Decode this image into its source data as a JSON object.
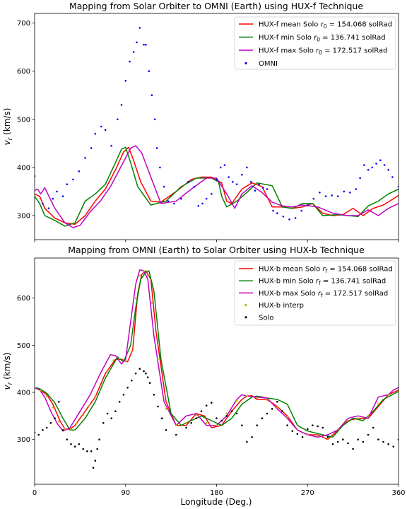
{
  "chart_data": [
    {
      "type": "line",
      "title": "Mapping from Solar Orbiter to OMNI (Earth) using HUX-f Technique",
      "xlabel": "",
      "ylabel": "v_r (km/s)",
      "ylabel_main": "v",
      "ylabel_sub": "r",
      "ylabel_rest": " (km/s)",
      "xlim": [
        0,
        360
      ],
      "ylim": [
        250,
        720
      ],
      "yticks": [
        "300",
        "400",
        "500",
        "600",
        "700"
      ],
      "legend_position": "upper-right",
      "series": [
        {
          "name": "HUX-f mean Solo r_0 = 154.068 solRad",
          "legend": {
            "pre": "HUX-f mean Solo ",
            "var": "r",
            "sub": "0",
            "post": " = 154.068 solRad"
          },
          "color": "#ff0000",
          "kind": "line",
          "x": [
            0,
            5,
            10,
            20,
            30,
            40,
            50,
            60,
            70,
            80,
            88,
            93,
            97,
            105,
            115,
            125,
            140,
            155,
            165,
            175,
            185,
            190,
            195,
            205,
            215,
            225,
            235,
            245,
            255,
            265,
            275,
            285,
            295,
            305,
            315,
            325,
            335,
            345,
            355,
            360
          ],
          "y": [
            345,
            340,
            315,
            295,
            285,
            282,
            300,
            330,
            355,
            395,
            432,
            442,
            420,
            370,
            330,
            328,
            350,
            375,
            380,
            380,
            368,
            330,
            325,
            355,
            368,
            360,
            318,
            318,
            315,
            318,
            325,
            305,
            300,
            302,
            315,
            300,
            315,
            322,
            335,
            342
          ]
        },
        {
          "name": "HUX-f min Solo r_0 = 136.741 solRad",
          "legend": {
            "pre": "HUX-f min Solo ",
            "var": "r",
            "sub": "0",
            "post": " = 136.741 solRad"
          },
          "color": "#008000",
          "kind": "line",
          "x": [
            0,
            5,
            10,
            20,
            30,
            40,
            50,
            60,
            70,
            80,
            86,
            90,
            95,
            102,
            115,
            130,
            145,
            160,
            175,
            182,
            185,
            190,
            200,
            210,
            220,
            235,
            245,
            255,
            265,
            275,
            285,
            300,
            310,
            320,
            330,
            340,
            350,
            360
          ],
          "y": [
            340,
            325,
            300,
            290,
            278,
            285,
            330,
            345,
            365,
            410,
            438,
            442,
            410,
            360,
            322,
            330,
            360,
            378,
            378,
            370,
            340,
            318,
            330,
            348,
            368,
            362,
            318,
            315,
            325,
            325,
            300,
            302,
            300,
            298,
            320,
            330,
            345,
            355
          ]
        },
        {
          "name": "HUX-f max Solo r_0 = 172.517 solRad",
          "legend": {
            "pre": "HUX-f max Solo ",
            "var": "r",
            "sub": "0",
            "post": " = 172.517 solRad"
          },
          "color": "#c000c0",
          "kind": "line",
          "x": [
            0,
            3,
            6,
            10,
            20,
            30,
            38,
            45,
            55,
            65,
            75,
            85,
            95,
            100,
            106,
            115,
            125,
            140,
            155,
            170,
            180,
            190,
            198,
            205,
            215,
            225,
            235,
            245,
            255,
            265,
            280,
            295,
            310,
            320,
            330,
            340,
            350,
            360
          ],
          "y": [
            352,
            355,
            345,
            358,
            315,
            285,
            275,
            280,
            308,
            330,
            360,
            400,
            440,
            445,
            430,
            380,
            325,
            330,
            355,
            378,
            378,
            345,
            315,
            345,
            362,
            348,
            328,
            320,
            318,
            322,
            318,
            305,
            300,
            300,
            312,
            300,
            315,
            325
          ]
        },
        {
          "name": "OMNI",
          "legend": {
            "pre": "OMNI",
            "var": "",
            "sub": "",
            "post": ""
          },
          "color": "#0000ff",
          "kind": "scatter",
          "x": [
            0,
            8,
            14,
            18,
            22,
            28,
            32,
            38,
            44,
            50,
            56,
            60,
            66,
            70,
            76,
            82,
            86,
            90,
            94,
            98,
            101,
            104,
            108,
            110,
            113,
            116,
            119,
            121,
            124,
            128,
            132,
            138,
            145,
            152,
            158,
            162,
            166,
            170,
            175,
            180,
            184,
            188,
            192,
            196,
            200,
            205,
            210,
            214,
            218,
            222,
            226,
            230,
            236,
            240,
            246,
            252,
            258,
            264,
            270,
            276,
            282,
            288,
            294,
            300,
            306,
            312,
            318,
            322,
            326,
            330,
            334,
            338,
            342,
            346,
            350,
            354,
            360
          ],
          "y": [
            382,
            325,
            315,
            335,
            350,
            340,
            365,
            375,
            392,
            420,
            440,
            470,
            485,
            478,
            445,
            500,
            530,
            580,
            620,
            640,
            660,
            690,
            655,
            655,
            600,
            550,
            500,
            440,
            400,
            360,
            330,
            325,
            335,
            370,
            360,
            320,
            325,
            335,
            345,
            375,
            400,
            405,
            380,
            370,
            365,
            385,
            400,
            370,
            352,
            365,
            358,
            355,
            310,
            305,
            298,
            292,
            295,
            310,
            322,
            335,
            348,
            340,
            342,
            340,
            350,
            348,
            355,
            378,
            405,
            395,
            400,
            408,
            415,
            405,
            395,
            380,
            360
          ]
        }
      ]
    },
    {
      "type": "line",
      "title": "Mapping from OMNI (Earth) to Solar Orbiter using HUX-b Technique",
      "xlabel": "Longitude (Deg.)",
      "ylabel": "v_r (km/s)",
      "ylabel_main": "v",
      "ylabel_sub": "r",
      "ylabel_rest": " (km/s)",
      "xlim": [
        0,
        360
      ],
      "ylim": [
        205,
        685
      ],
      "xticks": [
        "0",
        "90",
        "180",
        "270",
        "360"
      ],
      "yticks": [
        "300",
        "400",
        "500",
        "600"
      ],
      "legend_position": "upper-right",
      "series": [
        {
          "name": "HUX-b mean Solo r_f = 154.068 solRad",
          "legend": {
            "pre": "HUX-b mean Solo ",
            "var": "r",
            "sub": "f",
            "post": " = 154.068 solRad"
          },
          "color": "#ff0000",
          "kind": "line",
          "x": [
            0,
            5,
            12,
            18,
            25,
            30,
            35,
            40,
            50,
            60,
            70,
            80,
            86,
            92,
            97,
            102,
            106,
            110,
            115,
            120,
            130,
            140,
            150,
            160,
            168,
            175,
            185,
            195,
            205,
            210,
            215,
            220,
            230,
            240,
            250,
            260,
            270,
            280,
            290,
            300,
            310,
            320,
            330,
            340,
            350,
            360
          ],
          "y": [
            410,
            405,
            395,
            375,
            340,
            322,
            322,
            330,
            360,
            390,
            440,
            470,
            470,
            465,
            490,
            610,
            650,
            658,
            640,
            530,
            380,
            330,
            330,
            355,
            350,
            325,
            330,
            360,
            385,
            392,
            393,
            385,
            385,
            370,
            350,
            320,
            310,
            310,
            300,
            320,
            340,
            345,
            345,
            370,
            395,
            405
          ]
        },
        {
          "name": "HUX-b min Solo r_f = 136.741 solRad",
          "legend": {
            "pre": "HUX-b min Solo ",
            "var": "r",
            "sub": "f",
            "post": " = 136.741 solRad"
          },
          "color": "#008000",
          "kind": "line",
          "x": [
            0,
            5,
            12,
            20,
            28,
            35,
            40,
            50,
            60,
            70,
            82,
            88,
            95,
            100,
            105,
            110,
            113,
            118,
            125,
            135,
            145,
            155,
            165,
            175,
            185,
            195,
            205,
            215,
            220,
            230,
            240,
            250,
            260,
            270,
            285,
            295,
            305,
            315,
            325,
            335,
            345,
            360
          ],
          "y": [
            410,
            408,
            398,
            378,
            345,
            320,
            320,
            345,
            380,
            430,
            475,
            465,
            500,
            580,
            640,
            655,
            658,
            615,
            470,
            355,
            330,
            340,
            350,
            340,
            330,
            345,
            375,
            390,
            392,
            388,
            385,
            375,
            330,
            318,
            310,
            305,
            330,
            345,
            340,
            360,
            385,
            402
          ]
        },
        {
          "name": "HUX-b max Solo r_f = 172.517 solRad",
          "legend": {
            "pre": "HUX-b max Solo ",
            "var": "r",
            "sub": "f",
            "post": " = 172.517 solRad"
          },
          "color": "#c000c0",
          "kind": "line",
          "x": [
            0,
            5,
            10,
            16,
            22,
            28,
            35,
            45,
            55,
            65,
            75,
            80,
            86,
            90,
            95,
            100,
            104,
            108,
            112,
            118,
            128,
            140,
            150,
            160,
            170,
            180,
            190,
            200,
            205,
            210,
            220,
            230,
            240,
            250,
            260,
            270,
            280,
            290,
            300,
            310,
            320,
            330,
            340,
            350,
            355,
            360
          ],
          "y": [
            410,
            405,
            390,
            360,
            335,
            318,
            325,
            360,
            395,
            440,
            480,
            478,
            460,
            470,
            550,
            630,
            660,
            658,
            640,
            520,
            380,
            330,
            350,
            355,
            330,
            330,
            350,
            385,
            395,
            392,
            390,
            388,
            365,
            345,
            320,
            310,
            305,
            310,
            320,
            345,
            350,
            345,
            390,
            395,
            405,
            410
          ]
        },
        {
          "name": "HUX-b interp",
          "legend": {
            "pre": "HUX-b interp",
            "var": "",
            "sub": "",
            "post": ""
          },
          "color": "#b5b500",
          "kind": "scatter",
          "x": [
            0,
            6,
            12,
            18,
            24,
            30,
            36,
            42,
            48,
            54,
            60,
            66,
            72,
            78,
            84,
            90,
            96,
            100,
            104,
            108,
            112,
            116,
            122,
            130,
            140,
            150,
            160,
            170,
            180,
            190,
            200,
            210,
            220,
            230,
            240,
            250,
            260,
            270,
            280,
            290,
            300,
            310,
            320,
            330,
            340,
            350,
            360
          ],
          "y": [
            410,
            404,
            392,
            368,
            338,
            322,
            322,
            335,
            352,
            372,
            392,
            415,
            445,
            468,
            472,
            466,
            520,
            600,
            648,
            657,
            648,
            590,
            470,
            365,
            330,
            335,
            352,
            335,
            330,
            355,
            382,
            392,
            388,
            384,
            368,
            348,
            322,
            312,
            308,
            302,
            322,
            340,
            345,
            350,
            375,
            395,
            405
          ]
        },
        {
          "name": "Solo",
          "legend": {
            "pre": "Solo",
            "var": "",
            "sub": "",
            "post": ""
          },
          "color": "#000000",
          "kind": "scatter",
          "x": [
            0,
            4,
            8,
            12,
            16,
            20,
            24,
            28,
            32,
            36,
            40,
            44,
            48,
            52,
            56,
            58,
            60,
            62,
            64,
            68,
            72,
            76,
            80,
            84,
            88,
            92,
            96,
            100,
            104,
            108,
            110,
            112,
            114,
            118,
            122,
            126,
            130,
            140,
            150,
            155,
            160,
            165,
            170,
            175,
            180,
            185,
            190,
            195,
            200,
            205,
            210,
            215,
            220,
            225,
            230,
            235,
            240,
            245,
            250,
            255,
            260,
            265,
            270,
            275,
            280,
            285,
            290,
            295,
            300,
            305,
            310,
            315,
            320,
            325,
            330,
            335,
            340,
            345,
            350,
            355,
            360
          ],
          "y": [
            315,
            310,
            320,
            325,
            335,
            345,
            380,
            320,
            300,
            290,
            285,
            290,
            280,
            275,
            275,
            240,
            255,
            280,
            300,
            335,
            355,
            345,
            360,
            380,
            395,
            410,
            425,
            440,
            450,
            445,
            440,
            432,
            420,
            395,
            370,
            345,
            320,
            310,
            325,
            335,
            345,
            360,
            372,
            378,
            345,
            340,
            350,
            360,
            355,
            330,
            295,
            305,
            330,
            345,
            355,
            365,
            380,
            360,
            330,
            318,
            312,
            305,
            322,
            330,
            328,
            325,
            305,
            290,
            295,
            300,
            292,
            280,
            300,
            295,
            310,
            325,
            300,
            295,
            290,
            285,
            300
          ]
        }
      ]
    }
  ]
}
